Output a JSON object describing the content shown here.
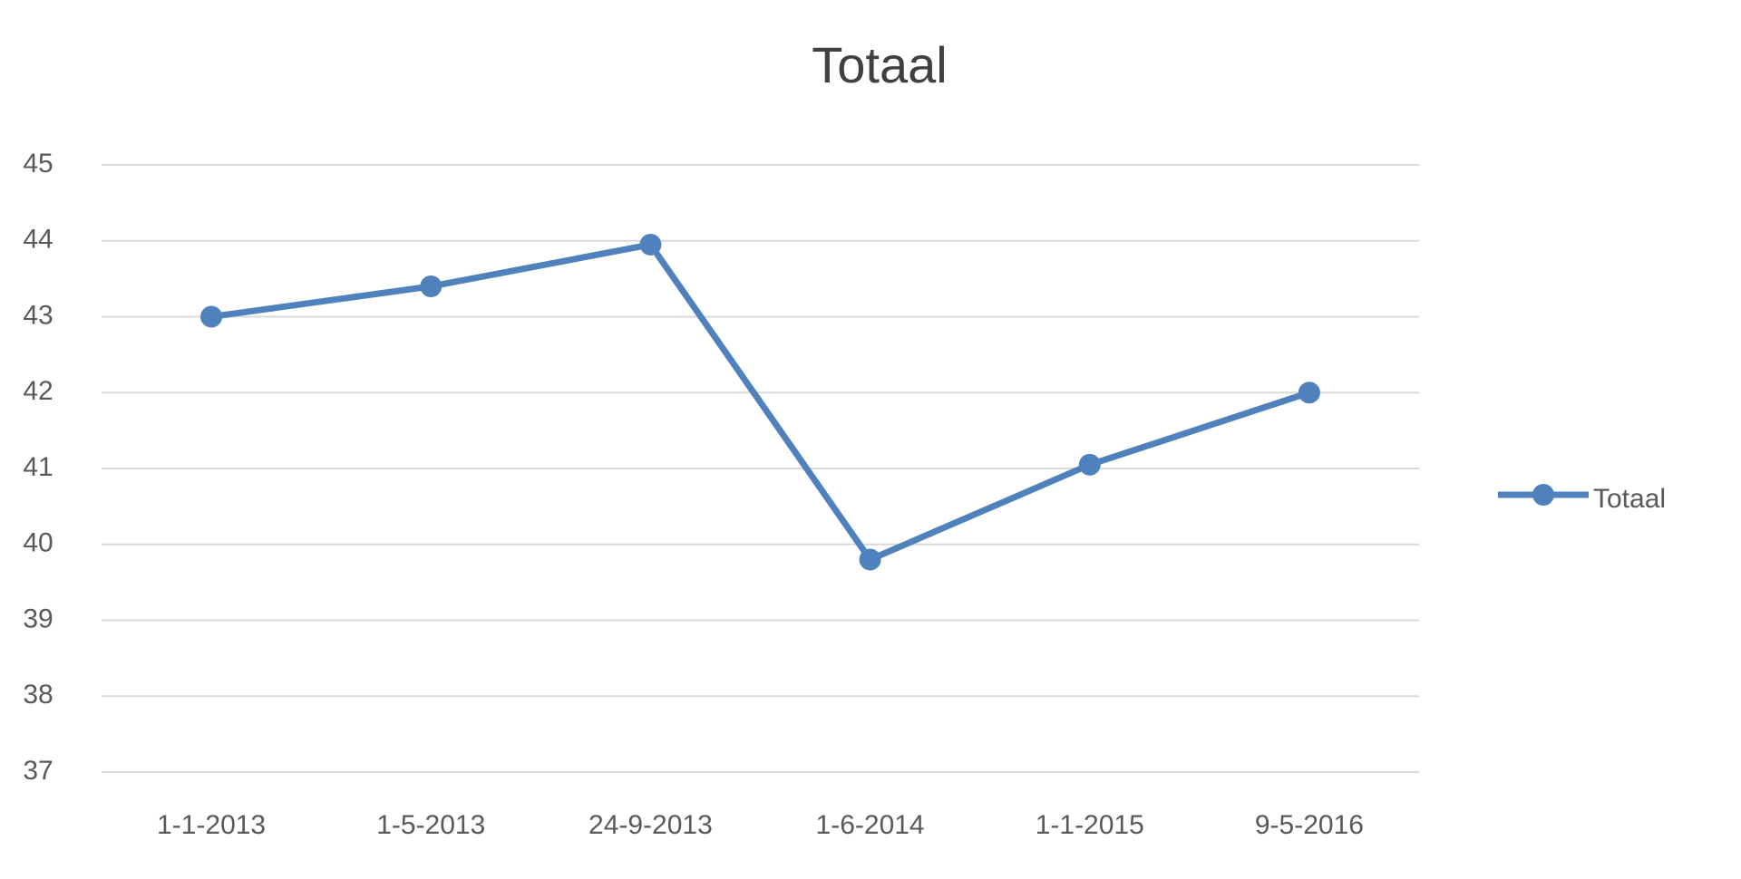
{
  "chart_data": {
    "type": "line",
    "title": "Totaal",
    "categories": [
      "1-1-2013",
      "1-5-2013",
      "24-9-2013",
      "1-6-2014",
      "1-1-2015",
      "9-5-2016"
    ],
    "series": [
      {
        "name": "Totaal",
        "color": "#4f81bd",
        "values": [
          43,
          43.4,
          43.95,
          39.8,
          41.05,
          42
        ]
      }
    ],
    "ylim": [
      37,
      45
    ],
    "yticks": [
      37,
      38,
      39,
      40,
      41,
      42,
      43,
      44,
      45
    ],
    "grid": true,
    "legend": "right"
  }
}
